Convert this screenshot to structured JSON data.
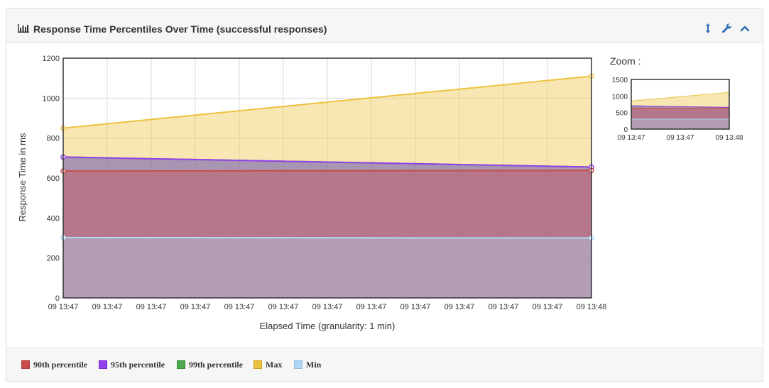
{
  "panel": {
    "title": "Response Time Percentiles Over Time (successful responses)",
    "icons": [
      "bar-chart-icon",
      "vertical-arrows-icon",
      "wrench-icon",
      "chevron-up-icon"
    ]
  },
  "zoom": {
    "label": "Zoom :"
  },
  "chart_data": [
    {
      "type": "area",
      "title": "",
      "xlabel": "Elapsed Time (granularity: 1 min)",
      "ylabel": "Response Time in ms",
      "ylim": [
        0,
        1200
      ],
      "yticks": [
        "0",
        "200",
        "400",
        "600",
        "800",
        "1000",
        "1200"
      ],
      "x_ticks": [
        "09 13:47",
        "09 13:47",
        "09 13:47",
        "09 13:47",
        "09 13:47",
        "09 13:47",
        "09 13:47",
        "09 13:47",
        "09 13:47",
        "09 13:47",
        "09 13:47",
        "09 13:47",
        "09 13:48"
      ],
      "grid": true,
      "legend_position": "bottom",
      "x": [
        "09 13:47",
        "09 13:48"
      ],
      "series": [
        {
          "name": "Max",
          "color": "#EDC240",
          "values": [
            850,
            1110
          ]
        },
        {
          "name": "99th percentile",
          "color": "#4DA74D",
          "values": [
            705,
            655
          ]
        },
        {
          "name": "95th percentile",
          "color": "#9440ED",
          "values": [
            705,
            655
          ]
        },
        {
          "name": "90th percentile",
          "color": "#CB4B4B",
          "values": [
            635,
            638
          ]
        },
        {
          "name": "Min",
          "color": "#AFD8F8",
          "values": [
            302,
            300
          ]
        }
      ]
    },
    {
      "type": "area",
      "title": "",
      "ylim": [
        0,
        1500
      ],
      "yticks": [
        "0",
        "500",
        "1000",
        "1500"
      ],
      "x_ticks": [
        "09 13:47",
        "09 13:47",
        "09 13:48"
      ],
      "grid": false,
      "series_ref": "same as main chart"
    }
  ],
  "legend": {
    "items": [
      {
        "label": "90th percentile",
        "color": "#CB4B4B"
      },
      {
        "label": "95th percentile",
        "color": "#9440ED"
      },
      {
        "label": "99th percentile",
        "color": "#4DA74D"
      },
      {
        "label": "Max",
        "color": "#EDC240"
      },
      {
        "label": "Min",
        "color": "#AFD8F8"
      }
    ]
  }
}
